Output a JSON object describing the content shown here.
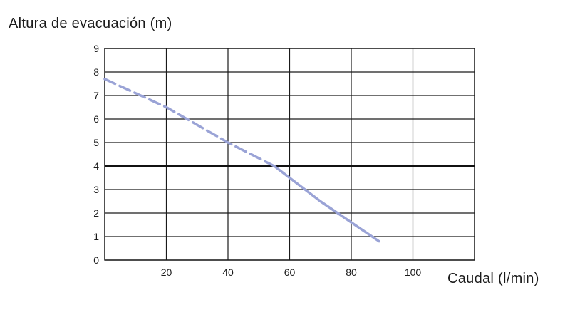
{
  "chart_data": {
    "type": "line",
    "ylabel": "Altura de evacuación (m)",
    "xlabel": "Caudal (l/min)",
    "xlim": [
      0,
      120
    ],
    "ylim": [
      0,
      9
    ],
    "x_ticks": [
      20,
      40,
      60,
      80,
      100
    ],
    "y_ticks": [
      0,
      1,
      2,
      3,
      4,
      5,
      6,
      7,
      8,
      9
    ],
    "grid": true,
    "reference_line": {
      "y": 4
    },
    "series": [
      {
        "color": "#9aa3d6",
        "segments": [
          {
            "style": "dashed",
            "x": [
              0,
              20,
              40,
              55
            ],
            "y": [
              7.7,
              6.5,
              5.0,
              4.0
            ]
          },
          {
            "style": "solid",
            "x": [
              55,
              70,
              89
            ],
            "y": [
              4.0,
              2.5,
              0.8
            ]
          }
        ]
      }
    ]
  }
}
